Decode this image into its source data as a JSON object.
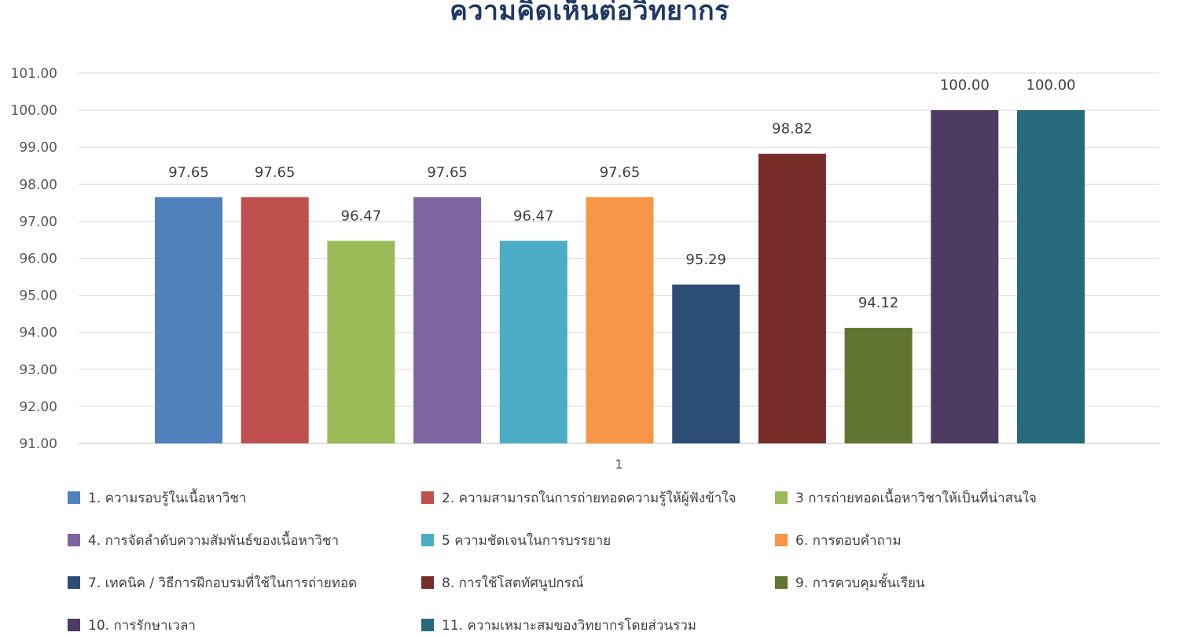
{
  "chart_data": {
    "type": "bar",
    "title": "ความคิดเห็นต่อวิทยากร",
    "xlabel": "",
    "ylabel": "",
    "categories": [
      "1"
    ],
    "ylim": [
      91,
      101
    ],
    "y_ticks": [
      "91.00",
      "92.00",
      "93.00",
      "94.00",
      "95.00",
      "96.00",
      "97.00",
      "98.00",
      "99.00",
      "100.00",
      "101.00"
    ],
    "grid": true,
    "legend_position": "bottom",
    "series": [
      {
        "name": "1. ความรอบรู้ในเนื้อหาวิชา",
        "values": [
          97.65
        ],
        "label": "97.65",
        "color": "#4f81bd"
      },
      {
        "name": "2. ความสามารถในการถ่ายทอดความรู้ให้ผู้ฟังข้าใจ",
        "values": [
          97.65
        ],
        "label": "97.65",
        "color": "#c0504d"
      },
      {
        "name": "3  การถ่ายทอดเนื้อหาวิชาให้เป็นที่น่าสนใจ",
        "values": [
          96.47
        ],
        "label": "96.47",
        "color": "#9bbb59"
      },
      {
        "name": "4. การจัดลำดับความสัมพันธ์ของเนื้อหาวิชา",
        "values": [
          97.65
        ],
        "label": "97.65",
        "color": "#8064a2"
      },
      {
        "name": "5  ความชัดเจนในการบรรยาย",
        "values": [
          96.47
        ],
        "label": "96.47",
        "color": "#4bacc6"
      },
      {
        "name": "6. การตอบคำถาม",
        "values": [
          97.65
        ],
        "label": "97.65",
        "color": "#f79646"
      },
      {
        "name": "7. เทคนิค / วิธีการฝึกอบรมที่ใช้ในการถ่ายทอด",
        "values": [
          95.29
        ],
        "label": "95.29",
        "color": "#2c4d75"
      },
      {
        "name": "8. การใช้โสตทัศนูปกรณ์",
        "values": [
          98.82
        ],
        "label": "98.82",
        "color": "#772c2a"
      },
      {
        "name": "9. การควบคุมชั้นเรียน",
        "values": [
          94.12
        ],
        "label": "94.12",
        "color": "#5f7530"
      },
      {
        "name": "10. การรักษาเวลา",
        "values": [
          100.0
        ],
        "label": "100.00",
        "color": "#4d3b62"
      },
      {
        "name": "11. ความเหมาะสมของวิทยากรโดยส่วนรวม",
        "values": [
          100.0
        ],
        "label": "100.00",
        "color": "#276a7c"
      }
    ]
  }
}
